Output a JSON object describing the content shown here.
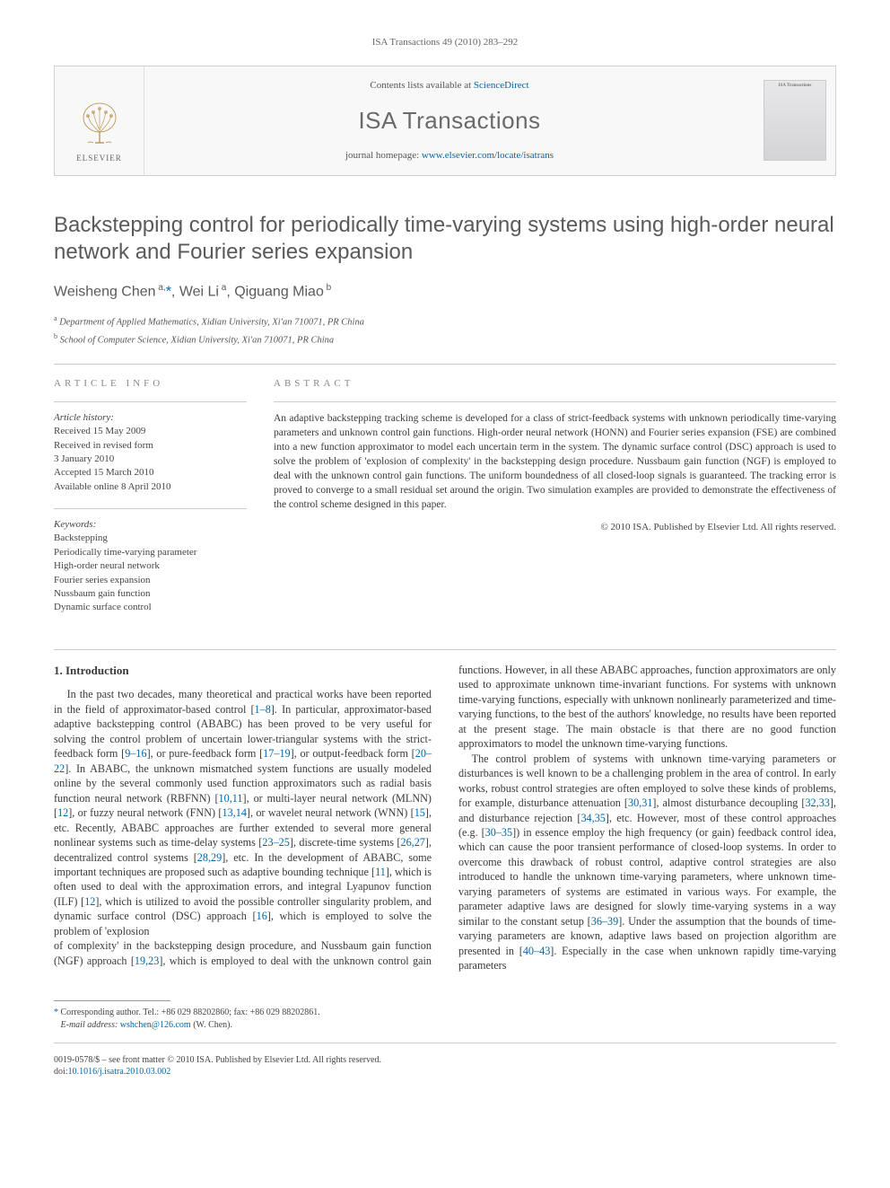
{
  "header": {
    "running_head": "ISA Transactions 49 (2010) 283–292"
  },
  "banner": {
    "contents_prefix": "Contents lists available at ",
    "contents_link": "ScienceDirect",
    "journal_name": "ISA Transactions",
    "homepage_prefix": "journal homepage: ",
    "homepage_link": "www.elsevier.com/locate/isatrans",
    "publisher_name": "ELSEVIER",
    "cover_label": "ISA Transactions"
  },
  "article": {
    "title": "Backstepping control for periodically time-varying systems using high-order neural network and Fourier series expansion",
    "authors_html": "Weisheng Chen<sup> a,</sup><a href=\"#\">*</a>, Wei Li<sup> a</sup>, Qiguang Miao<sup> b</sup>",
    "affiliations": [
      {
        "sup": "a",
        "text": "Department of Applied Mathematics, Xidian University, Xi'an 710071, PR China"
      },
      {
        "sup": "b",
        "text": "School of Computer Science, Xidian University, Xi'an 710071, PR China"
      }
    ]
  },
  "info": {
    "label": "ARTICLE INFO",
    "history_label": "Article history:",
    "history": [
      "Received 15 May 2009",
      "Received in revised form",
      "3 January 2010",
      "Accepted 15 March 2010",
      "Available online 8 April 2010"
    ],
    "keywords_label": "Keywords:",
    "keywords": [
      "Backstepping",
      "Periodically time-varying parameter",
      "High-order neural network",
      "Fourier series expansion",
      "Nussbaum gain function",
      "Dynamic surface control"
    ]
  },
  "abstract": {
    "label": "ABSTRACT",
    "text": "An adaptive backstepping tracking scheme is developed for a class of strict-feedback systems with unknown periodically time-varying parameters and unknown control gain functions. High-order neural network (HONN) and Fourier series expansion (FSE) are combined into a new function approximator to model each uncertain term in the system. The dynamic surface control (DSC) approach is used to solve the problem of 'explosion of complexity' in the backstepping design procedure. Nussbaum gain function (NGF) is employed to deal with the unknown control gain functions. The uniform boundedness of all closed-loop signals is guaranteed. The tracking error is proved to converge to a small residual set around the origin. Two simulation examples are provided to demonstrate the effectiveness of the control scheme designed in this paper.",
    "copyright": "© 2010 ISA. Published by Elsevier Ltd. All rights reserved."
  },
  "body": {
    "section_title": "1. Introduction",
    "para1": "In the past two decades, many theoretical and practical works have been reported in the field of approximator-based control [<a href=\"#\">1–8</a>]. In particular, approximator-based adaptive backstepping control (ABABC) has been proved to be very useful for solving the control problem of uncertain lower-triangular systems with the strict-feedback form [<a href=\"#\">9–16</a>], or pure-feedback form [<a href=\"#\">17–19</a>], or output-feedback form [<a href=\"#\">20–22</a>]. In ABABC, the unknown mismatched system functions are usually modeled online by the several commonly used function approximators such as radial basis function neural network (RBFNN) [<a href=\"#\">10,11</a>], or multi-layer neural network (MLNN) [<a href=\"#\">12</a>], or fuzzy neural network (FNN) [<a href=\"#\">13,14</a>], or wavelet neural network (WNN) [<a href=\"#\">15</a>], etc. Recently, ABABC approaches are further extended to several more general nonlinear systems such as time-delay systems [<a href=\"#\">23–25</a>], discrete-time systems [<a href=\"#\">26,27</a>], decentralized control systems [<a href=\"#\">28,29</a>], etc. In the development of ABABC, some important techniques are proposed such as adaptive bounding technique [<a href=\"#\">11</a>], which is often used to deal with the approximation errors, and integral Lyapunov function (ILF) [<a href=\"#\">12</a>], which is utilized to avoid the possible controller singularity problem, and dynamic surface control (DSC) approach [<a href=\"#\">16</a>], which is employed to solve the problem of 'explosion",
    "para2": "of complexity' in the backstepping design procedure, and Nussbaum gain function (NGF) approach [<a href=\"#\">19,23</a>], which is employed to deal with the unknown control gain functions. However, in all these ABABC approaches, function approximators are only used to approximate unknown time-invariant functions. For systems with unknown time-varying functions, especially with unknown nonlinearly parameterized and time-varying functions, to the best of the authors' knowledge, no results have been reported at the present stage. The main obstacle is that there are no good function approximators to model the unknown time-varying functions.",
    "para3": "The control problem of systems with unknown time-varying parameters or disturbances is well known to be a challenging problem in the area of control. In early works, robust control strategies are often employed to solve these kinds of problems, for example, disturbance attenuation [<a href=\"#\">30,31</a>], almost disturbance decoupling [<a href=\"#\">32,33</a>], and disturbance rejection [<a href=\"#\">34,35</a>], etc. However, most of these control approaches (e.g. [<a href=\"#\">30–35</a>]) in essence employ the high frequency (or gain) feedback control idea, which can cause the poor transient performance of closed-loop systems. In order to overcome this drawback of robust control, adaptive control strategies are also introduced to handle the unknown time-varying parameters, where unknown time-varying parameters of systems are estimated in various ways. For example, the parameter adaptive laws are designed for slowly time-varying systems in a way similar to the constant setup [<a href=\"#\">36–39</a>]. Under the assumption that the bounds of time-varying parameters are known, adaptive laws based on projection algorithm are presented in [<a href=\"#\">40–43</a>]. Especially in the case when unknown rapidly time-varying parameters"
  },
  "footnote": {
    "corr": "Corresponding author. Tel.: +86 029 88202860; fax: +86 029 88202861.",
    "email_label": "E-mail address:",
    "email": "wshchen@126.com",
    "email_suffix": "(W. Chen)."
  },
  "footer": {
    "line1": "0019-0578/$ – see front matter © 2010 ISA. Published by Elsevier Ltd. All rights reserved.",
    "doi_prefix": "doi:",
    "doi": "10.1016/j.isatra.2010.03.002"
  },
  "colors": {
    "link": "#0066aa",
    "text": "#3a3a3a",
    "muted": "#666666",
    "border": "#d0d0d0"
  }
}
